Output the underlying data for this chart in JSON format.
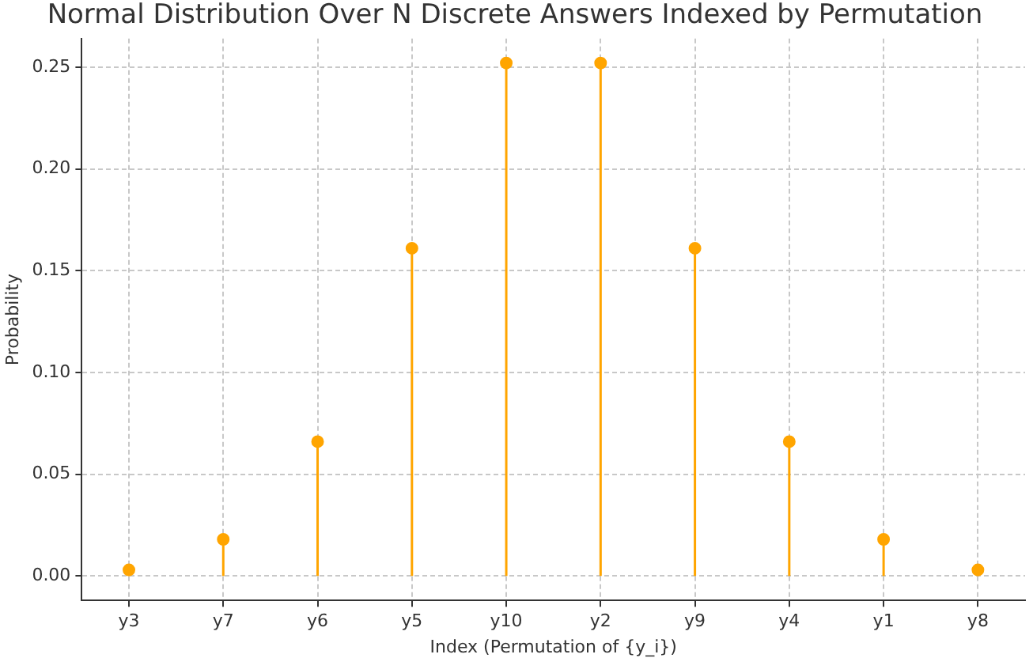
{
  "chart_data": {
    "type": "lollipop",
    "title": "Normal Distribution Over N Discrete Answers Indexed by Permutation",
    "xlabel": "Index (Permutation of {y_i})",
    "ylabel": "Probability",
    "categories": [
      "y3",
      "y7",
      "y6",
      "y5",
      "y10",
      "y2",
      "y9",
      "y4",
      "y1",
      "y8"
    ],
    "values": [
      0.003,
      0.018,
      0.066,
      0.161,
      0.252,
      0.252,
      0.161,
      0.066,
      0.018,
      0.003
    ],
    "color": "#ffa500",
    "ylim": [
      -0.012,
      0.264
    ],
    "yticks": [
      {
        "value": 0,
        "label": "0.00"
      },
      {
        "value": 0.05,
        "label": "0.05"
      },
      {
        "value": 0.1,
        "label": "0.10"
      },
      {
        "value": 0.15,
        "label": "0.15"
      },
      {
        "value": 0.2,
        "label": "0.20"
      },
      {
        "value": 0.25,
        "label": "0.25"
      }
    ],
    "grid": true,
    "marker": "circle"
  }
}
